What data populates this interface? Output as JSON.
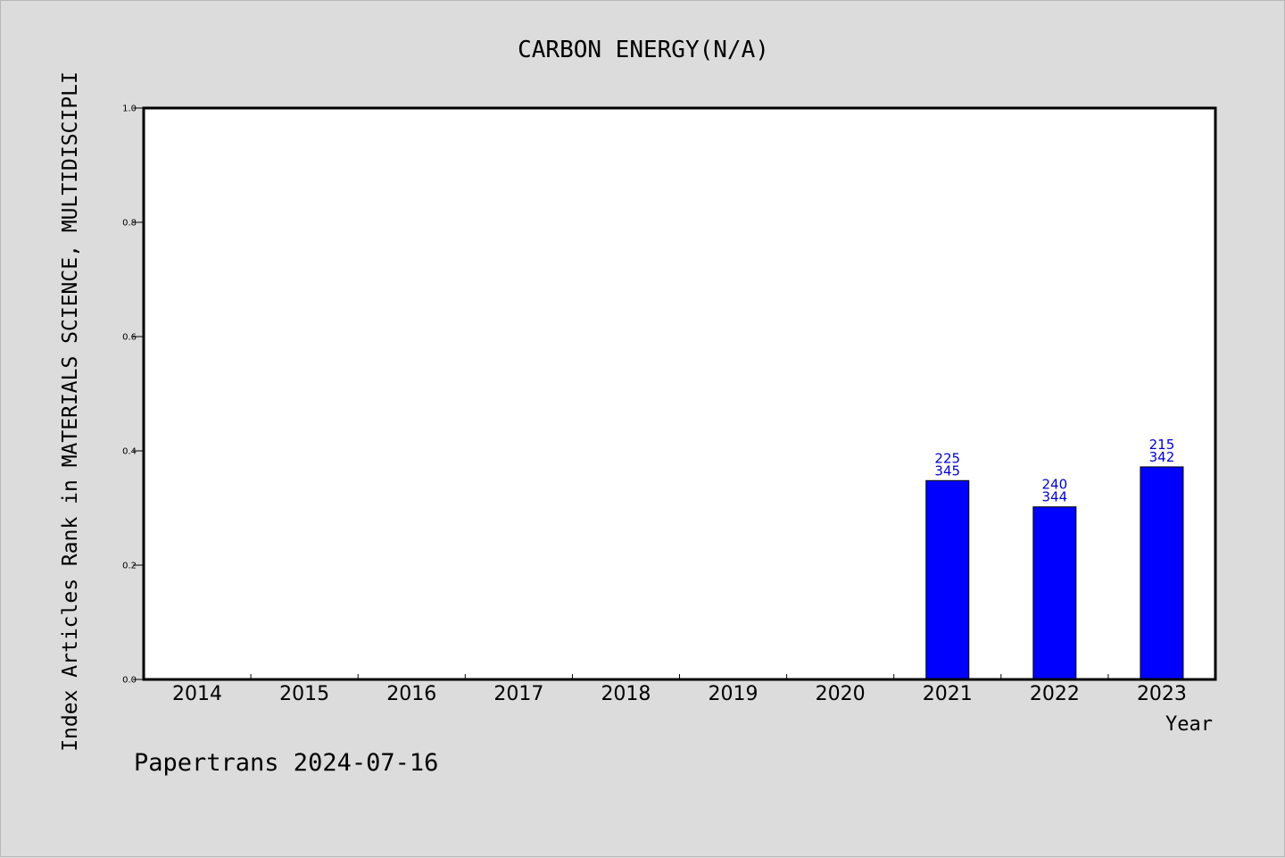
{
  "colors": {
    "background": "#dcdcdc",
    "plot_background": "#ffffff",
    "bar_fill": "#0000ff",
    "bar_label": "#0000cc",
    "axis": "#000000"
  },
  "footer": "Papertrans 2024-07-16",
  "chart_data": {
    "type": "bar",
    "title": "CARBON ENERGY(N/A)",
    "xlabel": "Year",
    "ylabel": "Index Articles Rank in MATERIALS SCIENCE, MULTIDISCIPLI",
    "categories": [
      "2014",
      "2015",
      "2016",
      "2017",
      "2018",
      "2019",
      "2020",
      "2021",
      "2022",
      "2023"
    ],
    "values": [
      null,
      null,
      null,
      null,
      null,
      null,
      null,
      0.348,
      0.302,
      0.372
    ],
    "labels_top": [
      "",
      "",
      "",
      "",
      "",
      "",
      "",
      "225",
      "240",
      "215"
    ],
    "labels_bottom": [
      "",
      "",
      "",
      "",
      "",
      "",
      "",
      "345",
      "344",
      "342"
    ],
    "ylim": [
      0,
      1.0
    ],
    "yticks": [
      "0.0",
      "0.2",
      "0.4",
      "0.6",
      "0.8",
      "1.0"
    ],
    "grid": false,
    "legend": "none"
  }
}
